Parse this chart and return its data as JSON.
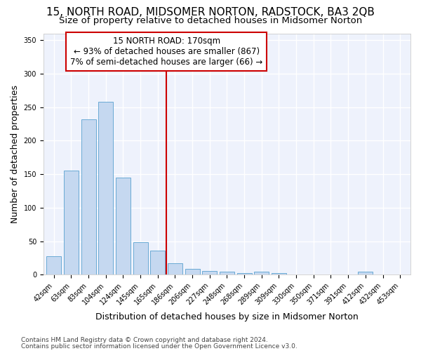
{
  "title": "15, NORTH ROAD, MIDSOMER NORTON, RADSTOCK, BA3 2QB",
  "subtitle": "Size of property relative to detached houses in Midsomer Norton",
  "xlabel": "Distribution of detached houses by size in Midsomer Norton",
  "ylabel": "Number of detached properties",
  "footer1": "Contains HM Land Registry data © Crown copyright and database right 2024.",
  "footer2": "Contains public sector information licensed under the Open Government Licence v3.0.",
  "annotation_line1": "15 NORTH ROAD: 170sqm",
  "annotation_line2": "← 93% of detached houses are smaller (867)",
  "annotation_line3": "7% of semi-detached houses are larger (66) →",
  "bar_color": "#c5d8f0",
  "bar_edge_color": "#6aaad4",
  "vline_color": "#cc0000",
  "categories": [
    "42sqm",
    "63sqm",
    "83sqm",
    "104sqm",
    "124sqm",
    "145sqm",
    "165sqm",
    "186sqm",
    "206sqm",
    "227sqm",
    "248sqm",
    "268sqm",
    "289sqm",
    "309sqm",
    "330sqm",
    "350sqm",
    "371sqm",
    "391sqm",
    "412sqm",
    "432sqm",
    "453sqm"
  ],
  "values": [
    28,
    155,
    232,
    258,
    145,
    49,
    36,
    17,
    9,
    6,
    5,
    3,
    5,
    3,
    0,
    0,
    0,
    0,
    5,
    0,
    0
  ],
  "ylim": [
    0,
    360
  ],
  "yticks": [
    0,
    50,
    100,
    150,
    200,
    250,
    300,
    350
  ],
  "bg_color": "#eef2fc",
  "grid_color": "#ffffff",
  "fig_bg": "#ffffff",
  "title_fontsize": 11,
  "subtitle_fontsize": 9.5,
  "ylabel_fontsize": 9,
  "xlabel_fontsize": 9,
  "tick_fontsize": 7,
  "ann_fontsize": 8.5,
  "footer_fontsize": 6.5
}
